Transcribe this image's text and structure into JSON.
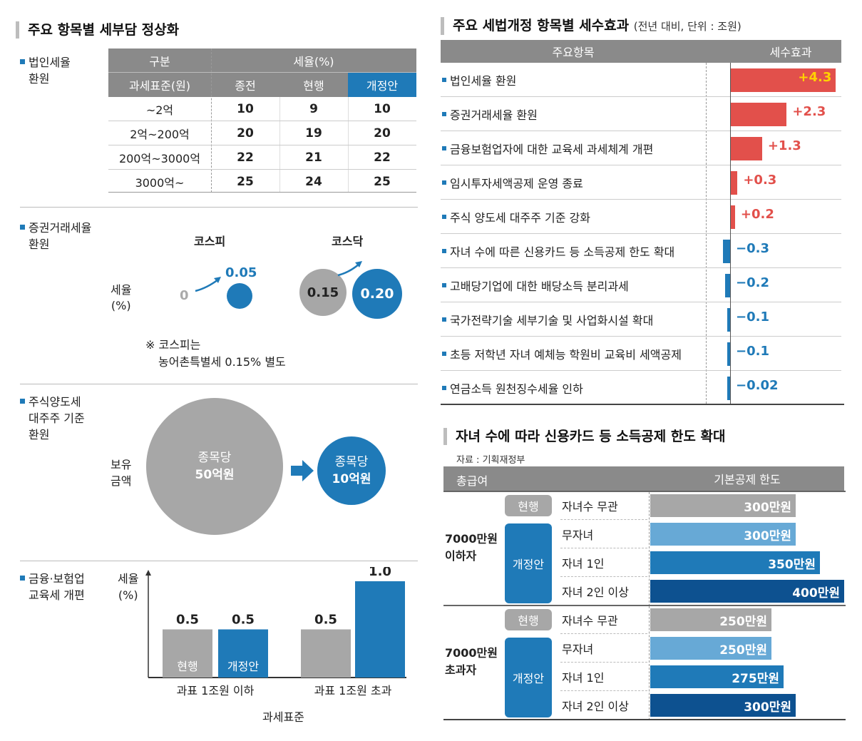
{
  "left": {
    "title": "주요 항목별 세부담 정상화",
    "corp_tax": {
      "label_line1": "법인세율",
      "label_line2": "환원",
      "header_group": "구분",
      "header_rate": "세율(%)",
      "header_base": "과세표준(원)",
      "header_prev": "종전",
      "header_curr": "현행",
      "header_new": "개정안",
      "rows": [
        {
          "base": "~2억",
          "prev": "10",
          "curr": "9",
          "new": "10"
        },
        {
          "base": "2억~200억",
          "prev": "20",
          "curr": "19",
          "new": "20"
        },
        {
          "base": "200억~3000억",
          "prev": "22",
          "curr": "21",
          "new": "22"
        },
        {
          "base": "3000억~",
          "prev": "25",
          "curr": "24",
          "new": "25"
        }
      ]
    },
    "securities": {
      "label_line1": "증권거래세율",
      "label_line2": "환원",
      "kospi": "코스피",
      "kosdaq": "코스닥",
      "axis_line1": "세율",
      "axis_line2": "(%)",
      "kospi_from": "0",
      "kospi_to": "0.05",
      "kosdaq_from": "0.15",
      "kosdaq_to": "0.20",
      "note_line1": "※ 코스피는",
      "note_line2": "농어촌특별세 0.15% 별도"
    },
    "capital_gains": {
      "label_line1": "주식양도세",
      "label_line2": "대주주 기준",
      "label_line3": "환원",
      "axis_line1": "보유",
      "axis_line2": "금액",
      "big_line1": "종목당",
      "big_line2": "50억원",
      "small_line1": "종목당",
      "small_line2": "10억원"
    },
    "edu_tax": {
      "label_line1": "금융·보험업",
      "label_line2": "교육세 개편",
      "axis_line1": "세율",
      "axis_line2": "(%)",
      "xlabel": "과세표준"
    }
  },
  "right": {
    "title": "주요 세법개정 항목별 세수효과",
    "title_sub": "(전년 대비, 단위 : 조원)",
    "col_item": "주요항목",
    "col_effect": "세수효과",
    "colors": {
      "positive": "#e2504b",
      "negative": "#1f7ab8",
      "max_label": "#ffd200"
    },
    "items": [
      {
        "label": "법인세율 환원",
        "value_text": "+4.3",
        "value": 4.3
      },
      {
        "label": "증권거래세율 환원",
        "value_text": "+2.3",
        "value": 2.3
      },
      {
        "label": "금융보험업자에 대한 교육세 과세체계 개편",
        "value_text": "+1.3",
        "value": 1.3
      },
      {
        "label": "임시투자세액공제 운영 종료",
        "value_text": "+0.3",
        "value": 0.3
      },
      {
        "label": "주식 양도세 대주주 기준 강화",
        "value_text": "+0.2",
        "value": 0.2
      },
      {
        "label": "자녀 수에 따른 신용카드 등 소득공제 한도 확대",
        "value_text": "−0.3",
        "value": -0.3
      },
      {
        "label": "고배당기업에 대한 배당소득 분리과세",
        "value_text": "−0.2",
        "value": -0.2
      },
      {
        "label": "국가전략기술 세부기술 및 사업화시설 확대",
        "value_text": "−0.1",
        "value": -0.1
      },
      {
        "label": "초등 저학년 자녀 예체능 학원비 교육비 세액공제",
        "value_text": "−0.1",
        "value": -0.1
      },
      {
        "label": "연금소득 원천징수세율 인하",
        "value_text": "−0.02",
        "value": -0.02
      }
    ],
    "card": {
      "title": "자녀 수에 따라 신용카드 등 소득공제 한도 확대",
      "source": "자료 : 기획재정부",
      "col_income": "총급여",
      "col_limit": "기본공제 한도",
      "colors": {
        "current": "#a7a7a7",
        "none": "#67a9d6",
        "one": "#1f7ab8",
        "two": "#0d5190"
      },
      "groups": [
        {
          "income_line1": "7000만원",
          "income_line2": "이하자",
          "current_tag": "현행",
          "new_tag": "개정안",
          "rows": [
            {
              "label": "자녀수 무관",
              "value_text": "300만원",
              "value": 300,
              "kind": "current"
            },
            {
              "label": "무자녀",
              "value_text": "300만원",
              "value": 300,
              "kind": "none"
            },
            {
              "label": "자녀 1인",
              "value_text": "350만원",
              "value": 350,
              "kind": "one"
            },
            {
              "label": "자녀 2인 이상",
              "value_text": "400만원",
              "value": 400,
              "kind": "two"
            }
          ]
        },
        {
          "income_line1": "7000만원",
          "income_line2": "초과자",
          "current_tag": "현행",
          "new_tag": "개정안",
          "rows": [
            {
              "label": "자녀수 무관",
              "value_text": "250만원",
              "value": 250,
              "kind": "current"
            },
            {
              "label": "무자녀",
              "value_text": "250만원",
              "value": 250,
              "kind": "none"
            },
            {
              "label": "자녀 1인",
              "value_text": "275만원",
              "value": 275,
              "kind": "one"
            },
            {
              "label": "자녀 2인 이상",
              "value_text": "300만원",
              "value": 300,
              "kind": "two"
            }
          ]
        }
      ]
    }
  },
  "chart_data": [
    {
      "type": "table",
      "title": "법인세율 환원",
      "columns": [
        "과세표준(원)",
        "종전",
        "현행",
        "개정안"
      ],
      "rows": [
        [
          "~2억",
          10,
          9,
          10
        ],
        [
          "2억~200억",
          20,
          19,
          20
        ],
        [
          "200억~3000억",
          22,
          21,
          22
        ],
        [
          "3000억~",
          25,
          24,
          25
        ]
      ]
    },
    {
      "type": "bar",
      "title": "금융·보험업 교육세 개편",
      "categories": [
        "과표 1조원 이하",
        "과표 1조원 초과"
      ],
      "series": [
        {
          "name": "현행",
          "values": [
            0.5,
            0.5
          ]
        },
        {
          "name": "개정안",
          "values": [
            0.5,
            1.0
          ]
        }
      ],
      "value_labels": [
        "0.5",
        "0.5",
        "0.5",
        "1.0"
      ],
      "xlabel": "과세표준",
      "ylabel": "세율 (%)",
      "ylim": [
        0,
        1.0
      ],
      "colors": {
        "현행": "#a7a7a7",
        "개정안": "#1f7ab8"
      }
    },
    {
      "type": "bar",
      "title": "주요 세법개정 항목별 세수효과",
      "orientation": "horizontal",
      "categories": [
        "법인세율 환원",
        "증권거래세율 환원",
        "금융보험업자에 대한 교육세 과세체계 개편",
        "임시투자세액공제 운영 종료",
        "주식 양도세 대주주 기준 강화",
        "자녀 수에 따른 신용카드 등 소득공제 한도 확대",
        "고배당기업에 대한 배당소득 분리과세",
        "국가전략기술 세부기술 및 사업화시설 확대",
        "초등 저학년 자녀 예체능 학원비 교육비 세액공제",
        "연금소득 원천징수세율 인하"
      ],
      "values": [
        4.3,
        2.3,
        1.3,
        0.3,
        0.2,
        -0.3,
        -0.2,
        -0.1,
        -0.1,
        -0.02
      ]
    },
    {
      "type": "bar",
      "title": "자녀 수에 따라 신용카드 등 소득공제 한도 확대",
      "orientation": "horizontal",
      "categories": [
        "현행 자녀수 무관",
        "무자녀",
        "자녀 1인",
        "자녀 2인 이상"
      ],
      "series": [
        {
          "name": "7000만원 이하자",
          "values": [
            300,
            300,
            350,
            400
          ]
        },
        {
          "name": "7000만원 초과자",
          "values": [
            250,
            250,
            275,
            300
          ]
        }
      ]
    }
  ]
}
